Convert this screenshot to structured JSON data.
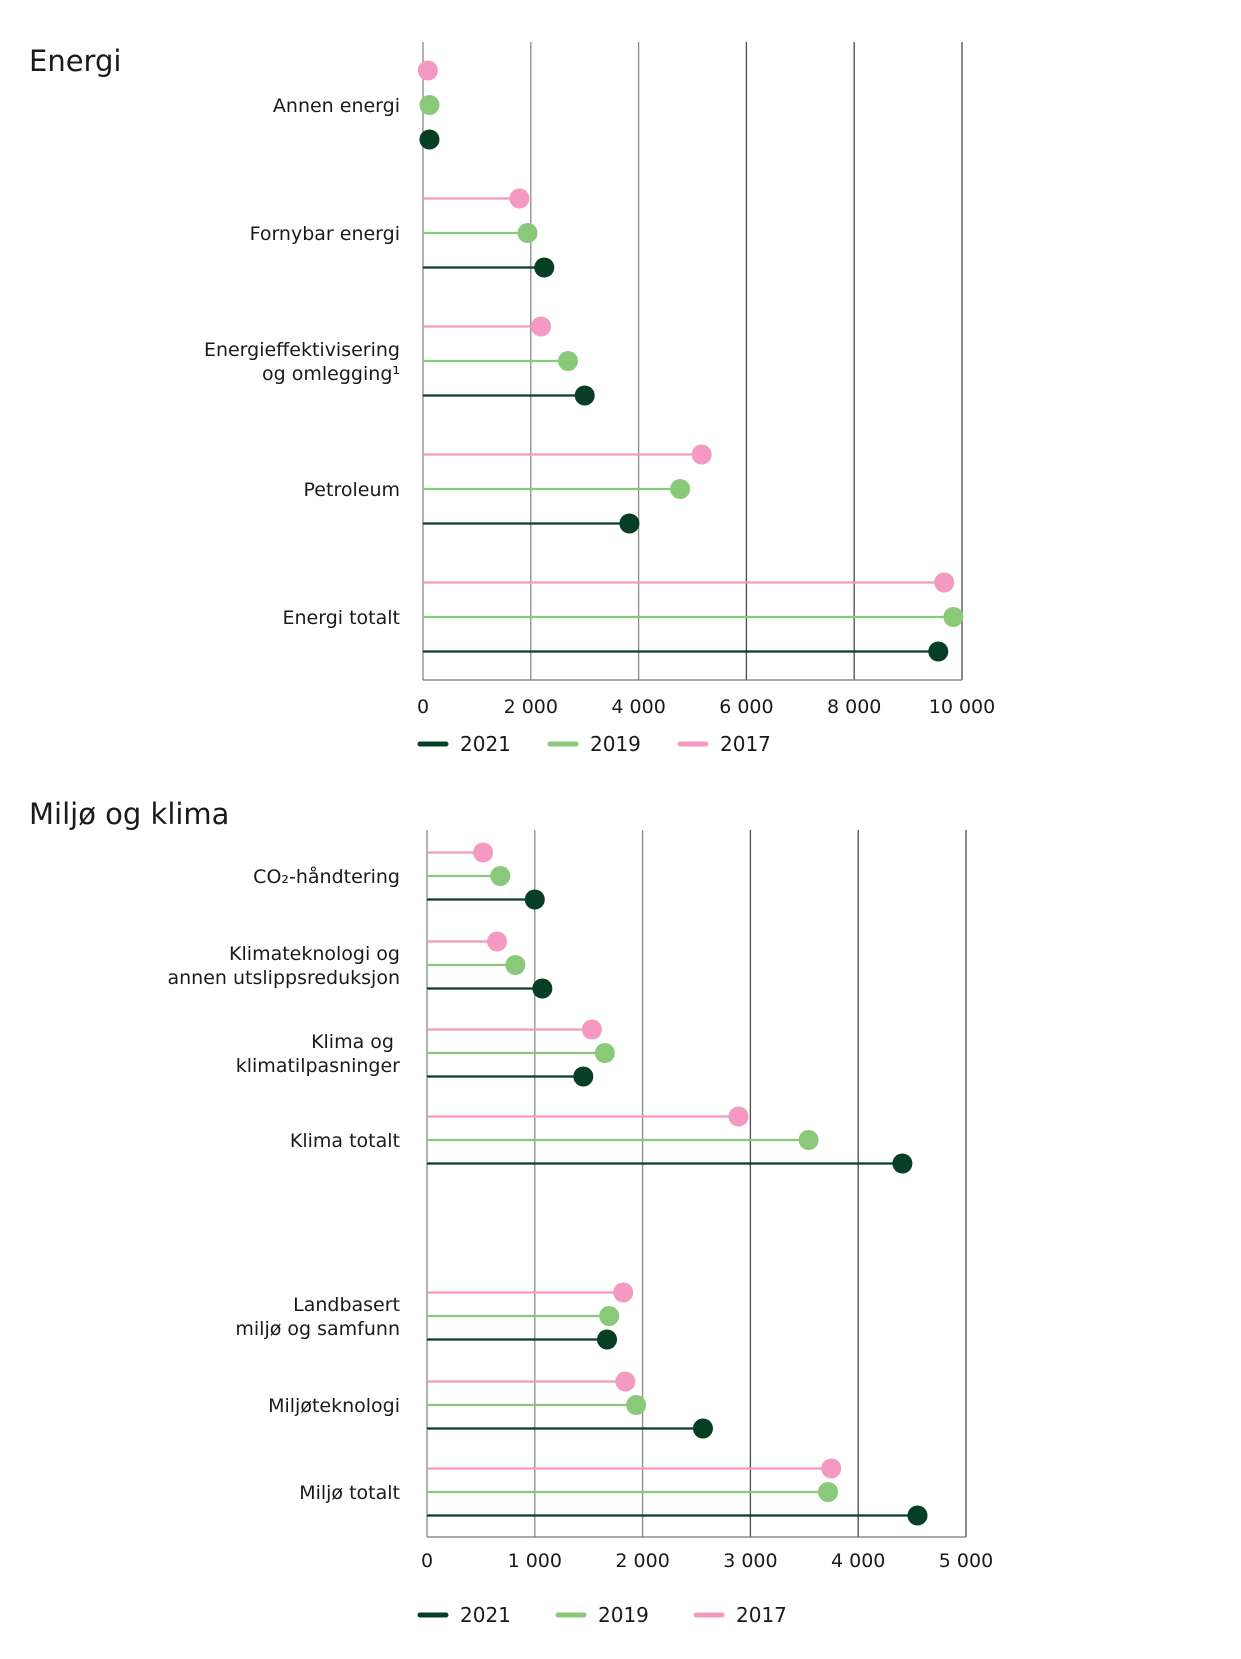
{
  "chart_data": [
    {
      "type": "dot-plot",
      "title": "Energi",
      "xlabel": "",
      "ylabel": "",
      "xlim": [
        0,
        10000
      ],
      "xticks": [
        0,
        2000,
        4000,
        6000,
        8000,
        10000
      ],
      "xtick_labels": [
        "0",
        "2 000",
        "4 000",
        "6 000",
        "8 000",
        "10 000"
      ],
      "grid": "vertical",
      "legend_position": "bottom",
      "categories": [
        {
          "label": [
            "Annen energi"
          ]
        },
        {
          "label": [
            "Fornybar energi"
          ]
        },
        {
          "label": [
            "Energieffektivisering",
            "og omlegging¹"
          ]
        },
        {
          "label": [
            "Petroleum"
          ]
        },
        {
          "label": [
            "Energi totalt"
          ]
        }
      ],
      "series": [
        {
          "name": "2017",
          "color": "#f49ac1",
          "values": [
            90,
            1790,
            2190,
            5170,
            9670
          ]
        },
        {
          "name": "2019",
          "color": "#8ac97a",
          "values": [
            120,
            1940,
            2690,
            4770,
            9840
          ]
        },
        {
          "name": "2021",
          "color": "#063f25",
          "values": [
            120,
            2250,
            3000,
            3830,
            9560
          ]
        }
      ],
      "legend": [
        {
          "name": "2021",
          "color": "#063f25"
        },
        {
          "name": "2019",
          "color": "#8ac97a"
        },
        {
          "name": "2017",
          "color": "#f49ac1"
        }
      ]
    },
    {
      "type": "dot-plot",
      "title": "Miljø og klima",
      "xlabel": "",
      "ylabel": "",
      "xlim": [
        0,
        5000
      ],
      "xticks": [
        0,
        1000,
        2000,
        3000,
        4000,
        5000
      ],
      "xtick_labels": [
        "0",
        "1 000",
        "2 000",
        "3 000",
        "4 000",
        "5 000"
      ],
      "grid": "vertical",
      "legend_position": "bottom",
      "categories": [
        {
          "label": [
            "CO₂-håndtering"
          ]
        },
        {
          "label": [
            "Klimateknologi og",
            "annen utslippsreduksjon"
          ]
        },
        {
          "label": [
            "Klima og ",
            "klimatilpasninger"
          ]
        },
        {
          "label": [
            "Klima totalt"
          ]
        },
        {
          "label": [
            "Landbasert",
            "miljø og samfunn"
          ]
        },
        {
          "label": [
            "Miljøteknologi"
          ]
        },
        {
          "label": [
            "Miljø totalt"
          ]
        }
      ],
      "series": [
        {
          "name": "2017",
          "color": "#f49ac1",
          "values": [
            520,
            650,
            1530,
            2890,
            1820,
            1840,
            3750
          ]
        },
        {
          "name": "2019",
          "color": "#8ac97a",
          "values": [
            680,
            820,
            1650,
            3540,
            1690,
            1940,
            3720
          ]
        },
        {
          "name": "2021",
          "color": "#063f25",
          "values": [
            1000,
            1070,
            1450,
            4410,
            1670,
            2560,
            4550
          ]
        }
      ],
      "legend": [
        {
          "name": "2021",
          "color": "#063f25"
        },
        {
          "name": "2019",
          "color": "#8ac97a"
        },
        {
          "name": "2017",
          "color": "#f49ac1"
        }
      ]
    }
  ]
}
